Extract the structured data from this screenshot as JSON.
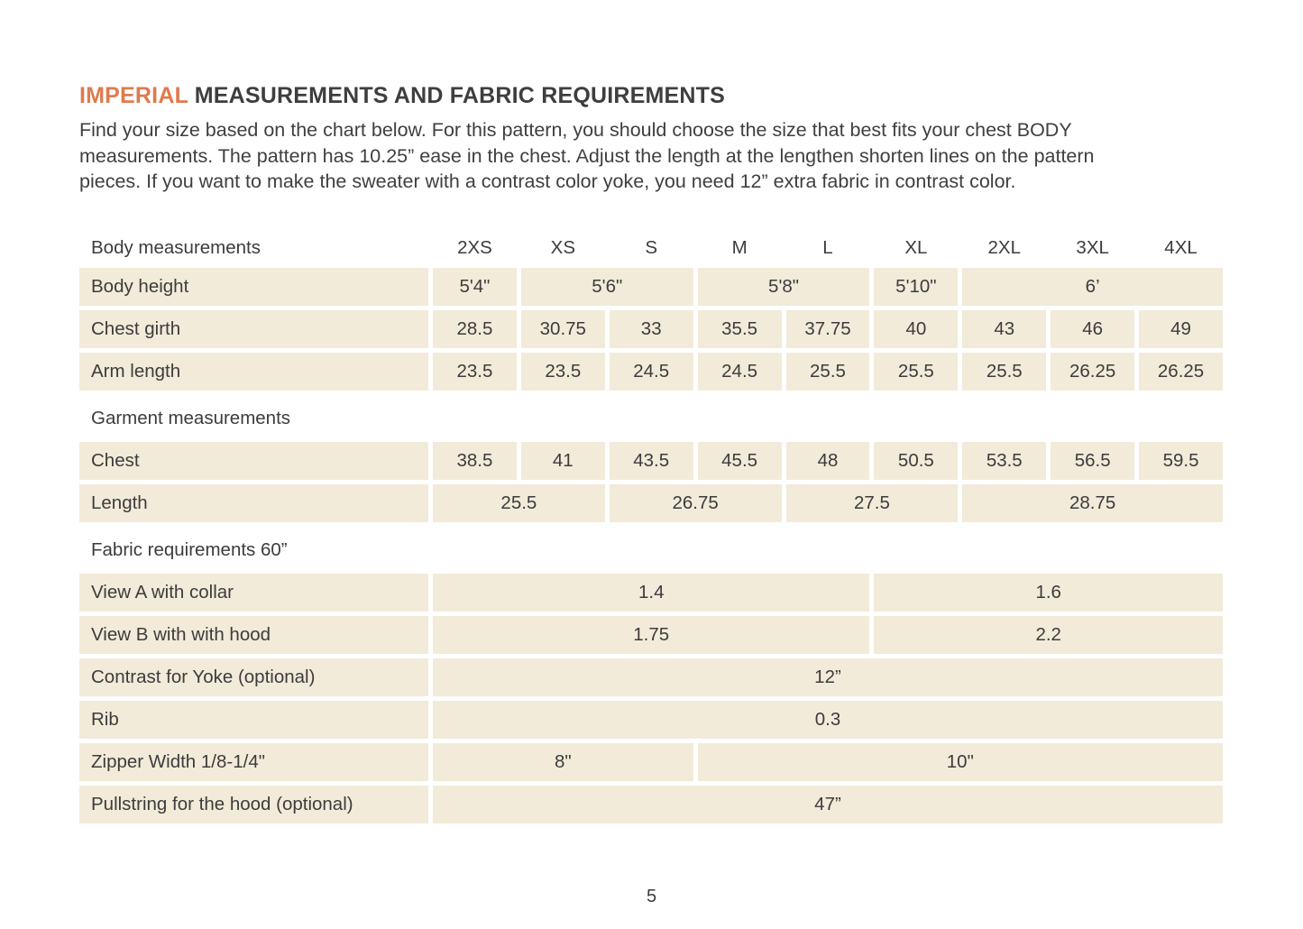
{
  "colors": {
    "accent_orange": "#e07a4c",
    "cell_beige": "#f2ebd9",
    "text": "#3c3c3c"
  },
  "page": {
    "title_accent": "IMPERIAL",
    "title_rest": "MEASUREMENTS AND FABRIC REQUIREMENTS",
    "intro_line1": "Find your size based on the chart below. For this pattern, you should choose the size that best fits your chest BODY",
    "intro_line2": "measurements. The pattern has 10.25” ease in the chest.  Adjust the length at the lengthen shorten lines on the pattern",
    "intro_line3": "pieces. If you want to make the sweater with a contrast color yoke, you need 12” extra fabric in contrast color.",
    "page_number": "5"
  },
  "table": {
    "header": {
      "label": "Body measurements",
      "sizes": [
        "2XS",
        "XS",
        "S",
        "M",
        "L",
        "XL",
        "2XL",
        "3XL",
        "4XL"
      ]
    },
    "rows": [
      {
        "type": "data",
        "label": "Body height",
        "cells": [
          {
            "text": "5'4\"",
            "span": 1
          },
          {
            "text": "5'6\"",
            "span": 2
          },
          {
            "text": "5'8\"",
            "span": 2
          },
          {
            "text": "5'10\"",
            "span": 1
          },
          {
            "text": "6’",
            "span": 3
          }
        ]
      },
      {
        "type": "data",
        "label": "Chest girth",
        "cells": [
          {
            "text": "28.5",
            "span": 1
          },
          {
            "text": "30.75",
            "span": 1
          },
          {
            "text": "33",
            "span": 1
          },
          {
            "text": "35.5",
            "span": 1
          },
          {
            "text": "37.75",
            "span": 1
          },
          {
            "text": "40",
            "span": 1
          },
          {
            "text": "43",
            "span": 1
          },
          {
            "text": "46",
            "span": 1
          },
          {
            "text": "49",
            "span": 1
          }
        ]
      },
      {
        "type": "data",
        "label": "Arm length",
        "cells": [
          {
            "text": "23.5",
            "span": 1
          },
          {
            "text": "23.5",
            "span": 1
          },
          {
            "text": "24.5",
            "span": 1
          },
          {
            "text": "24.5",
            "span": 1
          },
          {
            "text": "25.5",
            "span": 1
          },
          {
            "text": "25.5",
            "span": 1
          },
          {
            "text": "25.5",
            "span": 1
          },
          {
            "text": "26.25",
            "span": 1
          },
          {
            "text": "26.25",
            "span": 1
          }
        ]
      },
      {
        "type": "section",
        "label": "Garment measurements"
      },
      {
        "type": "data",
        "label": "Chest",
        "cells": [
          {
            "text": "38.5",
            "span": 1
          },
          {
            "text": "41",
            "span": 1
          },
          {
            "text": "43.5",
            "span": 1
          },
          {
            "text": "45.5",
            "span": 1
          },
          {
            "text": "48",
            "span": 1
          },
          {
            "text": "50.5",
            "span": 1
          },
          {
            "text": "53.5",
            "span": 1
          },
          {
            "text": "56.5",
            "span": 1
          },
          {
            "text": "59.5",
            "span": 1
          }
        ]
      },
      {
        "type": "data",
        "label": "Length",
        "cells": [
          {
            "text": "25.5",
            "span": 2
          },
          {
            "text": "26.75",
            "span": 2
          },
          {
            "text": "27.5",
            "span": 2
          },
          {
            "text": "28.75",
            "span": 3
          }
        ]
      },
      {
        "type": "section",
        "label": "Fabric requirements 60”"
      },
      {
        "type": "data",
        "label": "View A with collar",
        "cells": [
          {
            "text": "1.4",
            "span": 5
          },
          {
            "text": "1.6",
            "span": 4
          }
        ]
      },
      {
        "type": "data",
        "label": "View B with with hood",
        "cells": [
          {
            "text": "1.75",
            "span": 5
          },
          {
            "text": "2.2",
            "span": 4
          }
        ]
      },
      {
        "type": "data",
        "label": "Contrast for Yoke (optional)",
        "cells": [
          {
            "text": "12”",
            "span": 9
          }
        ]
      },
      {
        "type": "data",
        "label": "Rib",
        "cells": [
          {
            "text": "0.3",
            "span": 9
          }
        ]
      },
      {
        "type": "data",
        "label": "Zipper Width 1/8-1/4\"",
        "cells": [
          {
            "text": "8\"",
            "span": 3
          },
          {
            "text": "10\"",
            "span": 6
          }
        ]
      },
      {
        "type": "data",
        "label": "Pullstring for the hood (optional)",
        "cells": [
          {
            "text": "47”",
            "span": 9
          }
        ]
      }
    ]
  }
}
